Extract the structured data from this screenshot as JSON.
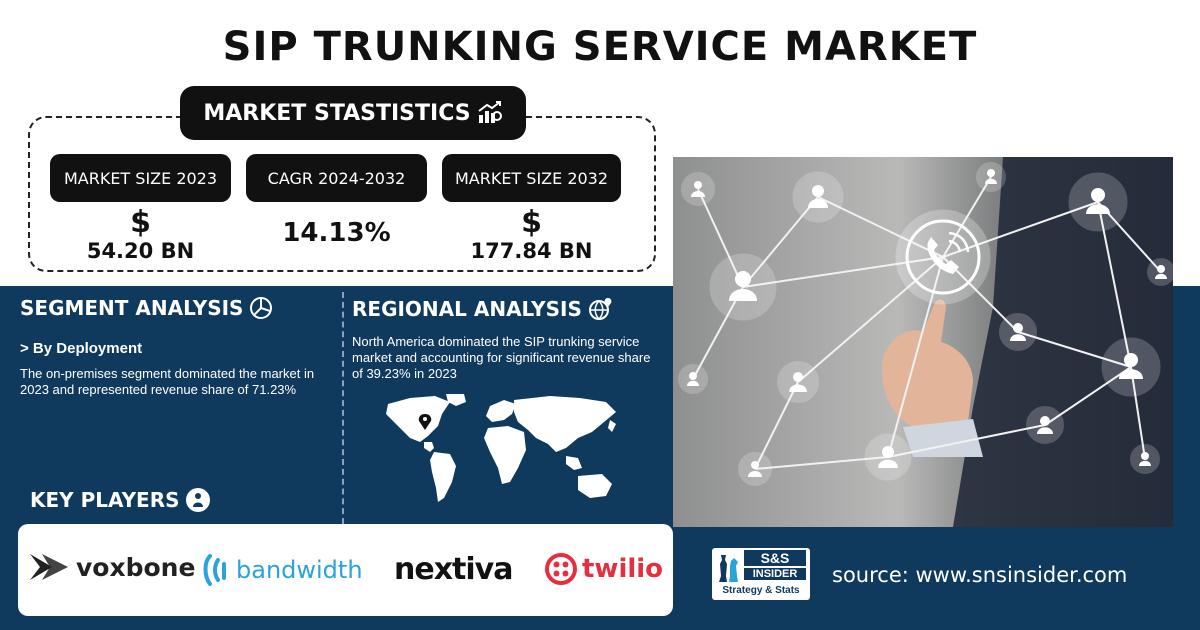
{
  "title": "SIP TRUNKING SERVICE MARKET",
  "stats": {
    "heading": "MARKET STASTISTICS",
    "items": [
      {
        "label": "MARKET SIZE 2023",
        "currency": "$",
        "value": "54.20 BN"
      },
      {
        "label": "CAGR 2024-2032",
        "currency": "",
        "value": "14.13%"
      },
      {
        "label": "MARKET SIZE 2032",
        "currency": "$",
        "value": "177.84 BN"
      }
    ]
  },
  "segment": {
    "heading": "SEGMENT ANALYSIS",
    "subheading": "> By Deployment",
    "text": "The on-premises segment dominated the market in 2023 and represented revenue share of 71.23%"
  },
  "regional": {
    "heading": "REGIONAL ANALYSIS",
    "text": "North America dominated the SIP trunking service market and accounting for significant revenue share of 39.23% in 2023"
  },
  "key_players": {
    "heading": "KEY PLAYERS",
    "logos": [
      "voxbone",
      "bandwidth",
      "nextiva",
      "twilio"
    ]
  },
  "brand": {
    "logo_top": "S&S",
    "logo_mid": "INSIDER",
    "logo_bottom": "Strategy & Stats"
  },
  "source": "source: www.snsinsider.com",
  "colors": {
    "navy": "#0f3a5e",
    "black": "#111111",
    "twilio_red": "#e62f3e",
    "bandwidth_blue": "#2aa4d8"
  }
}
